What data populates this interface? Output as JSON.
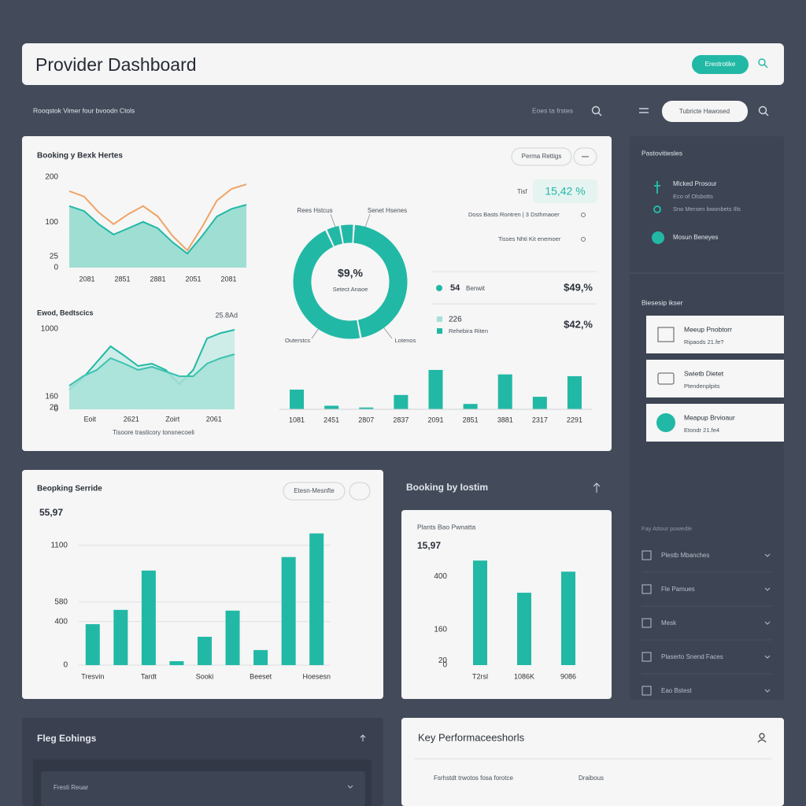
{
  "header": {
    "title": "Provider Dashboard",
    "button": "Ereotrotike"
  },
  "toolbar": {
    "breadcrumb": "Rooqstok Vimer four bvoodn Ctols",
    "filter": "Eoes ta frstes",
    "pill": "Tubricte Hawosed"
  },
  "overview": {
    "title": "Booking y Bexk Hertes",
    "button": "Perma Rettigs",
    "trend": {
      "type": "line",
      "ylim": [
        0,
        200
      ],
      "yticks": [
        0,
        25,
        100,
        200
      ],
      "x_labels": [
        "2081",
        "2851",
        "2881",
        "2051",
        "2081"
      ],
      "series": [
        {
          "color": "#f0a366",
          "values": [
            169,
            157,
            122,
            96,
            118,
            136,
            113,
            70,
            38,
            90,
            148,
            174,
            184
          ]
        },
        {
          "color": "#22b8a6",
          "fill": "#8fd9cd",
          "values": [
            136,
            125,
            96,
            73,
            87,
            101,
            87,
            56,
            31,
            70,
            113,
            130,
            139
          ]
        }
      ]
    },
    "volume": {
      "type": "area",
      "title": "Ewod, Bedtscics",
      "annotation": "25.8Ad",
      "ylim": [
        0,
        1000
      ],
      "yticks": [
        0,
        20,
        160,
        1000
      ],
      "x_labels": [
        "Eoit",
        "2621",
        "Zoirt",
        "2061"
      ],
      "caption": "Tisoore trasticory tonsnecoeli",
      "series": [
        {
          "color": "#22b8a6",
          "fill": "#c7ebe5",
          "values": [
            245,
            392,
            588,
            784,
            667,
            539,
            569,
            490,
            314,
            490,
            882,
            950,
            990
          ]
        },
        {
          "color": "#3cc2b1",
          "fill": "#a6e0d7",
          "values": [
            294,
            412,
            490,
            637,
            569,
            490,
            529,
            471,
            412,
            412,
            569,
            637,
            686
          ]
        }
      ]
    },
    "donut": {
      "type": "pie",
      "color": "#22b8a6",
      "center_value": "$9,%",
      "center_label": "Setect Anaoe",
      "labels": [
        "Rees Hstcus",
        "Senet Hsenes",
        "Lotenos",
        "Outerstcs"
      ],
      "values": [
        4,
        4,
        46,
        46
      ]
    },
    "kpi": {
      "label": "Tisf",
      "value": "15,42 %"
    },
    "notes": [
      "Doss Basts Rontren | 3 Dsthmaoer",
      "Tisses Nhti Kit enemoer"
    ],
    "stats": [
      {
        "count": "54",
        "label": "Benwit",
        "amount": "$49,%"
      },
      {
        "count": "226",
        "label": "Rehebira Riten",
        "amount": "$42,%"
      }
    ],
    "mini_bars": {
      "type": "bar",
      "color": "#22b8a6",
      "categories": [
        "1081",
        "2451",
        "2807",
        "2837",
        "2091",
        "2851",
        "3881",
        "2317",
        "2291"
      ],
      "values": [
        22,
        4,
        2,
        16,
        44,
        6,
        39,
        14,
        37
      ]
    }
  },
  "sidebar": {
    "title": "Pastovitiesles",
    "activity": [
      "Mlcked Prosour",
      "Eco of Olsbotts",
      "Sno Mersen bwonbets Ills",
      "Mosun Beneyes"
    ],
    "section": "Biesesip ikser",
    "cards": [
      {
        "title": "Meeup Pnobtorr",
        "subtitle": "Ripaods 21.fe?"
      },
      {
        "title": "Swietb Dietet",
        "subtitle": "Ptendenplpits"
      },
      {
        "title": "Meapup Brvioaur",
        "subtitle": "Etondr 21.fe4"
      }
    ],
    "menu_title": "Fay Attour powedle",
    "menu": [
      "Plestb Mbanches",
      "Fle Pamues",
      "Mesk",
      "Plaserto Snend Faces",
      "Eao Bstest"
    ]
  },
  "service": {
    "title": "Beopking Serride",
    "button": "Etesn-Mesnfte",
    "total": "55,97",
    "chart": {
      "type": "bar",
      "color": "#22b8a6",
      "ylim": [
        0,
        1250
      ],
      "yticks": [
        0,
        400,
        580,
        1100
      ],
      "grid": true,
      "categories": [
        "Tresvin",
        null,
        "Tardt",
        null,
        "Sooki",
        null,
        "Beeset",
        null,
        "Hoesesn"
      ],
      "values": [
        376,
        507,
        868,
        36,
        260,
        500,
        138,
        992,
        1209
      ]
    }
  },
  "location": {
    "title": "Booking by Iostim",
    "card_title": "Plants Bao Pwnatta",
    "total": "15,97",
    "chart": {
      "type": "bar",
      "color": "#22b8a6",
      "ylim": [
        0,
        500
      ],
      "yticks": [
        0,
        20,
        160,
        400
      ],
      "categories": [
        "T2rsl",
        "1086K",
        "9086"
      ],
      "values": [
        471,
        326,
        421
      ]
    }
  },
  "flagged": {
    "title": "Fleg Eohings",
    "dropdown": "Fresti Reuar"
  },
  "kpis": {
    "title": "Key Performaceeshorls",
    "columns": [
      "Fsrhstdt trwotos fosa forotce",
      "Draibous"
    ]
  }
}
